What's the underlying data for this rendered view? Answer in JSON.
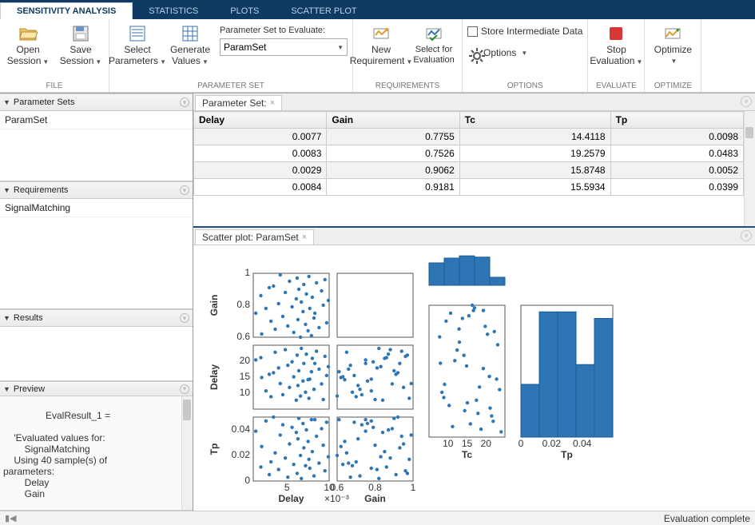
{
  "tabs": {
    "items": [
      "SENSITIVITY ANALYSIS",
      "STATISTICS",
      "PLOTS",
      "SCATTER PLOT"
    ],
    "active": 0
  },
  "ribbon": {
    "file": {
      "label": "FILE",
      "open": "Open\nSession",
      "save": "Save\nSession"
    },
    "paramset": {
      "label": "PARAMETER SET",
      "select": "Select\nParameters",
      "generate": "Generate\nValues",
      "combo_label": "Parameter Set to Evaluate:",
      "combo_value": "ParamSet"
    },
    "reqs": {
      "label": "REQUIREMENTS",
      "new": "New\nRequirement",
      "select": "Select for\nEvaluation"
    },
    "options": {
      "label": "OPTIONS",
      "store": "Store Intermediate Data",
      "opt": "Options"
    },
    "evaluate": {
      "label": "EVALUATE",
      "stop": "Stop\nEvaluation"
    },
    "optimize": {
      "label": "OPTIMIZE",
      "opt": "Optimize"
    }
  },
  "left": {
    "paramsets": {
      "title": "Parameter Sets",
      "items": [
        "ParamSet"
      ]
    },
    "requirements": {
      "title": "Requirements",
      "items": [
        "SignalMatching"
      ]
    },
    "results": {
      "title": "Results"
    },
    "preview": {
      "title": "Preview",
      "text": "EvalResult_1 =\n\n    'Evaluated values for:\n        SignalMatching\n    Using 40 sample(s) of\nparameters:\n        Delay\n        Gain"
    }
  },
  "doc": {
    "paramset_tab": "Parameter Set:",
    "scatter_tab": "Scatter plot: ParamSet",
    "columns": [
      "Delay",
      "Gain",
      "Tc",
      "Tp"
    ],
    "rows": [
      [
        "0.0077",
        "0.7755",
        "14.4118",
        "0.0098"
      ],
      [
        "0.0083",
        "0.7526",
        "19.2579",
        "0.0483"
      ],
      [
        "0.0029",
        "0.9062",
        "15.8748",
        "0.0052"
      ],
      [
        "0.0084",
        "0.9181",
        "15.5934",
        "0.0399"
      ]
    ]
  },
  "scatter": {
    "color": "#2e75b6",
    "grid": "#555",
    "bg": "#ffffff",
    "axis_labels": {
      "gain": "Gain",
      "delay": "Delay",
      "tc": "Tc",
      "tp": "Tp"
    },
    "delay_gain": {
      "xlim": [
        0.001,
        0.01
      ],
      "ylim": [
        0.6,
        1.0
      ],
      "yticks": [
        0.6,
        0.8,
        1.0
      ]
    },
    "delay_delay": {
      "xlim": [
        0.001,
        0.01
      ],
      "ylim": [
        5,
        25
      ],
      "yticks": [
        10,
        15,
        20
      ]
    },
    "gain_delay": {
      "xlim": [
        0.6,
        1.0
      ],
      "ylim": [
        5,
        25
      ]
    },
    "delay_tp": {
      "xlim": [
        0.001,
        0.01
      ],
      "ylim": [
        0,
        0.05
      ],
      "yticks": [
        0,
        0.02,
        0.04
      ],
      "xticks": [
        0.005,
        0.01
      ],
      "xtick_labels": [
        "5",
        "10"
      ],
      "xlabel_suffix": "×10⁻³"
    },
    "gain_tp": {
      "xlim": [
        0.6,
        1.0
      ],
      "ylim": [
        0,
        0.05
      ],
      "xticks": [
        0.6,
        0.8,
        1.0
      ],
      "xtick_labels": [
        "0.6",
        "0.8",
        "1"
      ]
    },
    "tc_hist": {
      "xlim": [
        5,
        25
      ],
      "bins": [
        0.7,
        0.85,
        0.92,
        0.88,
        0.25
      ]
    },
    "tc_tp": {
      "xlim": [
        5,
        25
      ],
      "ylim": [
        0,
        0.05
      ],
      "xticks": [
        10,
        15,
        20
      ]
    },
    "tp_hist": {
      "xlim": [
        0,
        0.06
      ],
      "bins": [
        0.4,
        0.95,
        0.95,
        0.55,
        0.9
      ],
      "xticks": [
        0,
        0.02,
        0.04
      ]
    },
    "points": [
      {
        "d": 0.0013,
        "g": 0.75,
        "tc": 20.4,
        "tp": 0.039
      },
      {
        "d": 0.0019,
        "g": 0.86,
        "tc": 21.1,
        "tp": 0.011
      },
      {
        "d": 0.002,
        "g": 0.62,
        "tc": 14.9,
        "tp": 0.027
      },
      {
        "d": 0.0025,
        "g": 0.78,
        "tc": 10.7,
        "tp": 0.047
      },
      {
        "d": 0.0029,
        "g": 0.91,
        "tc": 15.9,
        "tp": 0.005
      },
      {
        "d": 0.0031,
        "g": 0.7,
        "tc": 8.9,
        "tp": 0.015
      },
      {
        "d": 0.0034,
        "g": 0.92,
        "tc": 16.4,
        "tp": 0.05
      },
      {
        "d": 0.0036,
        "g": 0.65,
        "tc": 22.8,
        "tp": 0.022
      },
      {
        "d": 0.004,
        "g": 0.81,
        "tc": 17.9,
        "tp": 0.009
      },
      {
        "d": 0.0042,
        "g": 0.99,
        "tc": 13.0,
        "tp": 0.036
      },
      {
        "d": 0.0045,
        "g": 0.73,
        "tc": 9.5,
        "tp": 0.044
      },
      {
        "d": 0.0048,
        "g": 0.88,
        "tc": 23.6,
        "tp": 0.018
      },
      {
        "d": 0.0051,
        "g": 0.67,
        "tc": 18.7,
        "tp": 0.003
      },
      {
        "d": 0.0053,
        "g": 0.95,
        "tc": 11.8,
        "tp": 0.029
      },
      {
        "d": 0.0056,
        "g": 0.79,
        "tc": 19.8,
        "tp": 0.042
      },
      {
        "d": 0.0058,
        "g": 0.63,
        "tc": 15.1,
        "tp": 0.013
      },
      {
        "d": 0.0061,
        "g": 0.84,
        "tc": 7.8,
        "tp": 0.038
      },
      {
        "d": 0.0062,
        "g": 0.97,
        "tc": 21.9,
        "tp": 0.006
      },
      {
        "d": 0.0063,
        "g": 0.71,
        "tc": 12.4,
        "tp": 0.033
      },
      {
        "d": 0.0064,
        "g": 0.9,
        "tc": 17.0,
        "tp": 0.049
      },
      {
        "d": 0.0066,
        "g": 0.6,
        "tc": 9.1,
        "tp": 0.02
      },
      {
        "d": 0.0067,
        "g": 0.82,
        "tc": 24.0,
        "tp": 0.002
      },
      {
        "d": 0.0069,
        "g": 0.76,
        "tc": 13.8,
        "tp": 0.045
      },
      {
        "d": 0.007,
        "g": 0.93,
        "tc": 19.3,
        "tp": 0.026
      },
      {
        "d": 0.0072,
        "g": 0.68,
        "tc": 10.3,
        "tp": 0.012
      },
      {
        "d": 0.0073,
        "g": 0.87,
        "tc": 22.2,
        "tp": 0.04
      },
      {
        "d": 0.0075,
        "g": 0.64,
        "tc": 14.2,
        "tp": 0.031
      },
      {
        "d": 0.0076,
        "g": 0.98,
        "tc": 8.4,
        "tp": 0.017
      },
      {
        "d": 0.0077,
        "g": 0.78,
        "tc": 14.4,
        "tp": 0.01
      },
      {
        "d": 0.0079,
        "g": 0.61,
        "tc": 16.7,
        "tp": 0.048
      },
      {
        "d": 0.008,
        "g": 0.85,
        "tc": 20.9,
        "tp": 0.023
      },
      {
        "d": 0.0082,
        "g": 0.72,
        "tc": 11.2,
        "tp": 0.004
      },
      {
        "d": 0.0083,
        "g": 0.75,
        "tc": 19.3,
        "tp": 0.048
      },
      {
        "d": 0.0085,
        "g": 0.94,
        "tc": 23.1,
        "tp": 0.035
      },
      {
        "d": 0.0088,
        "g": 0.66,
        "tc": 17.5,
        "tp": 0.014
      },
      {
        "d": 0.0091,
        "g": 0.89,
        "tc": 12.9,
        "tp": 0.041
      },
      {
        "d": 0.0093,
        "g": 0.8,
        "tc": 8.0,
        "tp": 0.028
      },
      {
        "d": 0.0095,
        "g": 0.96,
        "tc": 21.5,
        "tp": 0.008
      },
      {
        "d": 0.0097,
        "g": 0.69,
        "tc": 15.5,
        "tp": 0.046
      },
      {
        "d": 0.0099,
        "g": 0.83,
        "tc": 18.3,
        "tp": 0.019
      }
    ]
  },
  "status": {
    "text": "Evaluation complete"
  }
}
